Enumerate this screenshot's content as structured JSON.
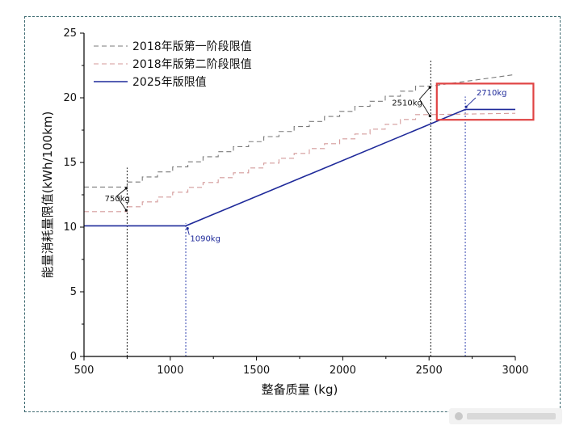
{
  "chart_data": {
    "type": "line",
    "xlabel": "整备质量 (kg)",
    "ylabel": "能量消耗量限值(kWh/100km)",
    "xlim": [
      500,
      3000
    ],
    "ylim": [
      0,
      25
    ],
    "x_ticks": [
      "500",
      "1000",
      "1500",
      "2000",
      "2500",
      "3000"
    ],
    "y_ticks": [
      "0",
      "5",
      "10",
      "15",
      "20",
      "25"
    ],
    "legend_position": "top-left",
    "series": [
      {
        "name": "2018年版第一阶段限值",
        "style": "dashed",
        "color": "#7a7a7a",
        "steps": {
          "x0": 500,
          "x_start": 750,
          "x_end": 2510,
          "y_start": 13.1,
          "y_end": 20.9,
          "step_count": 20,
          "x_final": 3000,
          "y_final": 21.8
        }
      },
      {
        "name": "2018年版第二阶段限值",
        "style": "dashed",
        "color": "#d49a9a",
        "steps": {
          "x0": 500,
          "x_start": 750,
          "x_end": 2510,
          "y_start": 11.2,
          "y_end": 18.7,
          "step_count": 20,
          "x_final": 3000,
          "y_final": 18.8
        }
      },
      {
        "name": "2025年版限值",
        "style": "solid",
        "color": "#1f2a9a",
        "points": [
          [
            500,
            10.1
          ],
          [
            1090,
            10.1
          ],
          [
            2710,
            19.1
          ],
          [
            3000,
            19.1
          ]
        ]
      }
    ],
    "vlines": [
      750,
      1090,
      2510,
      2710
    ],
    "annotations": [
      {
        "text": "750kg",
        "x": 750,
        "y": 12.2,
        "color": "black"
      },
      {
        "text": "1090kg",
        "x": 1090,
        "y": 10.1,
        "color": "blue"
      },
      {
        "text": "2510kg",
        "x": 2510,
        "y": 19.7,
        "color": "black"
      },
      {
        "text": "2710kg",
        "x": 2710,
        "y": 19.1,
        "color": "blue"
      }
    ],
    "highlight_box_color": "#e04444"
  }
}
